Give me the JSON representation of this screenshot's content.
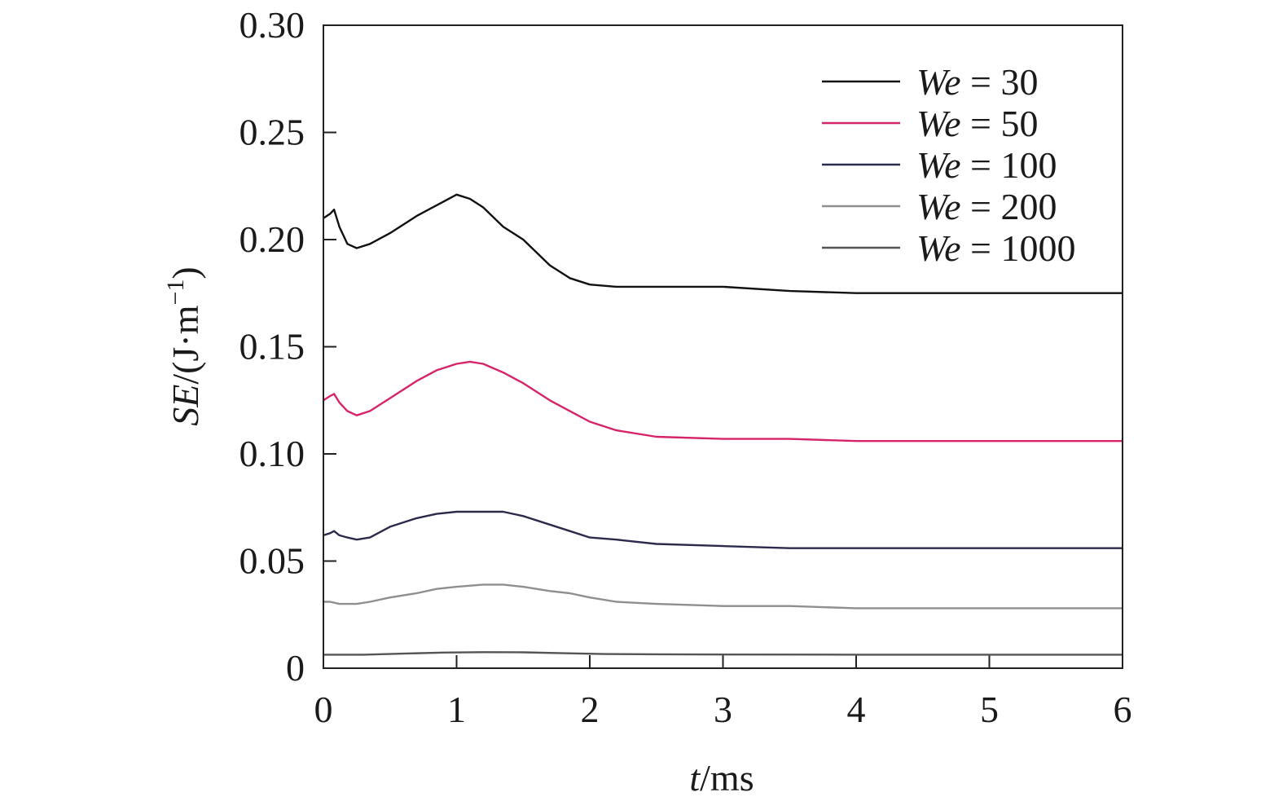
{
  "chart_data": {
    "type": "line",
    "xlabel": {
      "italic": "t",
      "rest": "/ms"
    },
    "ylabel": {
      "italic": "SE",
      "rest": "/(J·m",
      "sup": "−1",
      "close": ")"
    },
    "xlim": [
      0,
      6
    ],
    "ylim": [
      0,
      0.3
    ],
    "x_ticks": [
      0,
      1,
      2,
      3,
      4,
      5,
      6
    ],
    "x_tick_labels": [
      "0",
      "1",
      "2",
      "3",
      "4",
      "5",
      "6"
    ],
    "y_ticks": [
      0,
      0.05,
      0.1,
      0.15,
      0.2,
      0.25,
      0.3
    ],
    "y_tick_labels": [
      "0",
      "0.05",
      "0.10",
      "0.15",
      "0.20",
      "0.25",
      "0.30"
    ],
    "grid": false,
    "legend_position": "top-right",
    "series": [
      {
        "name": "We = 30",
        "legend_italic": "We",
        "legend_rest": " = 30",
        "color": "#111111",
        "x": [
          0,
          0.05,
          0.08,
          0.12,
          0.18,
          0.25,
          0.35,
          0.5,
          0.7,
          0.85,
          1.0,
          1.1,
          1.2,
          1.35,
          1.5,
          1.7,
          1.85,
          2.0,
          2.2,
          2.5,
          3.0,
          3.5,
          4.0,
          5.0,
          6.0
        ],
        "y": [
          0.21,
          0.212,
          0.214,
          0.206,
          0.198,
          0.196,
          0.198,
          0.203,
          0.211,
          0.216,
          0.221,
          0.219,
          0.215,
          0.206,
          0.2,
          0.188,
          0.182,
          0.179,
          0.178,
          0.178,
          0.178,
          0.176,
          0.175,
          0.175,
          0.175
        ]
      },
      {
        "name": "We = 50",
        "legend_italic": "We",
        "legend_rest": " = 50",
        "color": "#d6246a",
        "x": [
          0,
          0.05,
          0.08,
          0.12,
          0.18,
          0.25,
          0.35,
          0.5,
          0.7,
          0.85,
          1.0,
          1.1,
          1.2,
          1.35,
          1.5,
          1.7,
          1.85,
          2.0,
          2.2,
          2.5,
          3.0,
          3.5,
          4.0,
          5.0,
          6.0
        ],
        "y": [
          0.125,
          0.127,
          0.128,
          0.124,
          0.12,
          0.118,
          0.12,
          0.126,
          0.134,
          0.139,
          0.142,
          0.143,
          0.142,
          0.138,
          0.133,
          0.125,
          0.12,
          0.115,
          0.111,
          0.108,
          0.107,
          0.107,
          0.106,
          0.106,
          0.106
        ]
      },
      {
        "name": "We = 100",
        "legend_italic": "We",
        "legend_rest": " = 100",
        "color": "#2b2a4c",
        "x": [
          0,
          0.05,
          0.08,
          0.12,
          0.18,
          0.25,
          0.35,
          0.5,
          0.7,
          0.85,
          1.0,
          1.1,
          1.2,
          1.35,
          1.5,
          1.7,
          1.85,
          2.0,
          2.2,
          2.5,
          3.0,
          3.5,
          4.0,
          5.0,
          6.0
        ],
        "y": [
          0.062,
          0.063,
          0.064,
          0.062,
          0.061,
          0.06,
          0.061,
          0.066,
          0.07,
          0.072,
          0.073,
          0.073,
          0.073,
          0.073,
          0.071,
          0.067,
          0.064,
          0.061,
          0.06,
          0.058,
          0.057,
          0.056,
          0.056,
          0.056,
          0.056
        ]
      },
      {
        "name": "We = 200",
        "legend_italic": "We",
        "legend_rest": " = 200",
        "color": "#8f8f8f",
        "x": [
          0,
          0.05,
          0.12,
          0.25,
          0.35,
          0.5,
          0.7,
          0.85,
          1.0,
          1.2,
          1.35,
          1.5,
          1.7,
          1.85,
          2.0,
          2.2,
          2.5,
          3.0,
          3.5,
          4.0,
          5.0,
          6.0
        ],
        "y": [
          0.031,
          0.031,
          0.03,
          0.03,
          0.031,
          0.033,
          0.035,
          0.037,
          0.038,
          0.039,
          0.039,
          0.038,
          0.036,
          0.035,
          0.033,
          0.031,
          0.03,
          0.029,
          0.029,
          0.028,
          0.028,
          0.028
        ]
      },
      {
        "name": "We = 1000",
        "legend_italic": "We",
        "legend_rest": " = 1000",
        "color": "#555555",
        "x": [
          0,
          0.3,
          0.6,
          0.9,
          1.2,
          1.5,
          1.8,
          2.1,
          2.5,
          3.0,
          4.0,
          5.0,
          6.0
        ],
        "y": [
          0.0063,
          0.0063,
          0.0068,
          0.0073,
          0.0075,
          0.0074,
          0.007,
          0.0066,
          0.0065,
          0.0064,
          0.0063,
          0.0063,
          0.0063
        ]
      }
    ]
  }
}
